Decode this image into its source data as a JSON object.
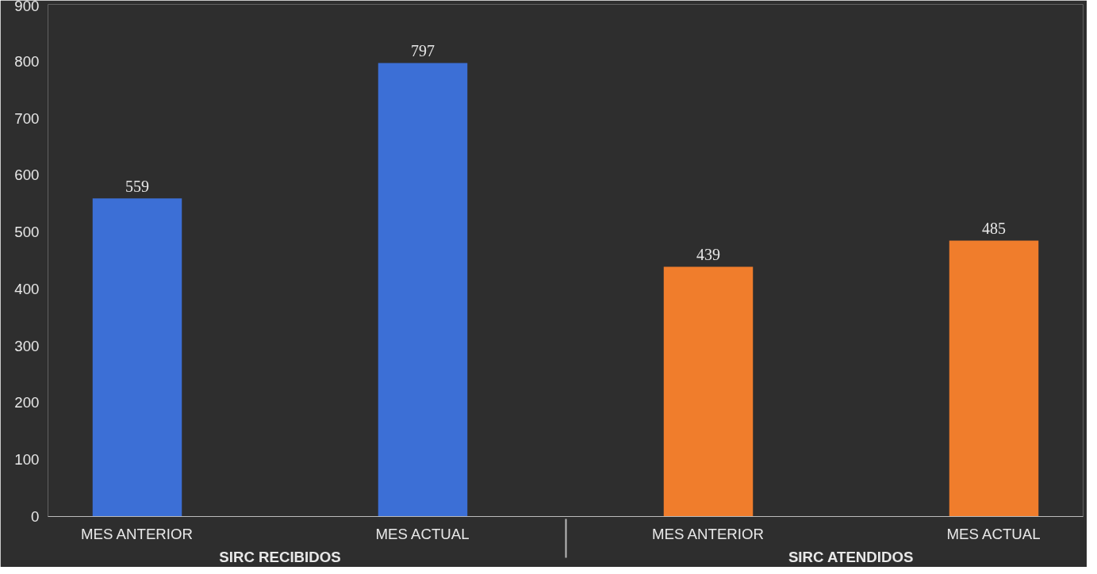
{
  "chart_data": {
    "type": "bar",
    "categories": [
      "MES ANTERIOR",
      "MES ACTUAL",
      "MES ANTERIOR",
      "MES ACTUAL"
    ],
    "annotations": [
      "SIRC RECIBIDOS",
      "SIRC ATENDIDOS"
    ],
    "values": [
      559,
      797,
      439,
      485
    ],
    "colors": [
      "#3c6fd6",
      "#3c6fd6",
      "#f07d2c",
      "#f07d2c"
    ],
    "ylim": [
      0,
      900
    ],
    "yticks": [
      0,
      100,
      200,
      300,
      400,
      500,
      600,
      700,
      800,
      900
    ],
    "grid": false,
    "data_labels": true
  }
}
